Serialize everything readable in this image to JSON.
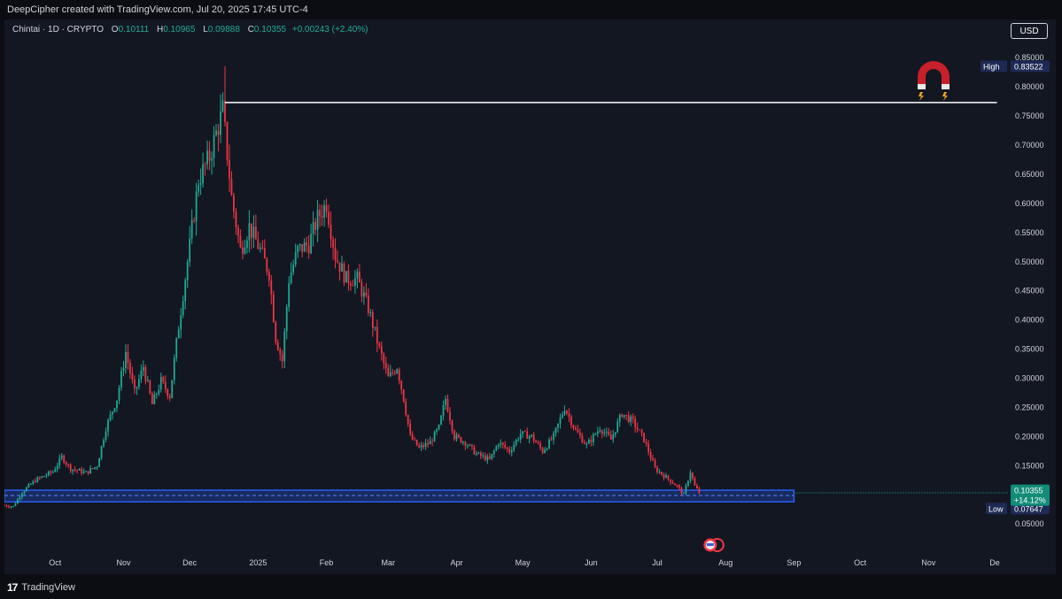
{
  "header": {
    "attribution": "DeepCipher created with TradingView.com, Jul 20, 2025 17:45 UTC-4"
  },
  "legend": {
    "symbol": "Chintai · 1D · CRYPTO",
    "open_label": "O",
    "open": "0.10111",
    "high_label": "H",
    "high": "0.10965",
    "low_label": "L",
    "low": "0.09888",
    "close_label": "C",
    "close": "0.10355",
    "change": "+0.00243 (+2.40%)"
  },
  "currency_button": "USD",
  "footer": {
    "brand_mark": "17",
    "brand": "TradingView"
  },
  "colors": {
    "up": "#22ab94",
    "down": "#f23645",
    "zone": "#2962ff",
    "bg": "#131722",
    "magnet": "#c8202a"
  },
  "icons": [
    "magnet-icon",
    "flag-icon",
    "tradingview-logo-icon"
  ],
  "chart_data": {
    "type": "candlestick",
    "ylim": [
      0.02,
      0.87
    ],
    "y_ticks": [
      "0.85000",
      "0.80000",
      "0.75000",
      "0.70000",
      "0.65000",
      "0.60000",
      "0.55000",
      "0.50000",
      "0.45000",
      "0.40000",
      "0.35000",
      "0.30000",
      "0.25000",
      "0.20000",
      "0.15000",
      "0.10000",
      "0.05000"
    ],
    "y_tick_values": [
      0.85,
      0.8,
      0.75,
      0.7,
      0.65,
      0.6,
      0.55,
      0.5,
      0.45,
      0.4,
      0.35,
      0.3,
      0.25,
      0.2,
      0.15,
      0.1,
      0.05
    ],
    "x_start": "2024-09-08",
    "x_end": "2025-12-05",
    "x_ticks": [
      {
        "label": "Oct",
        "date": "2024-10-01"
      },
      {
        "label": "Nov",
        "date": "2024-11-01"
      },
      {
        "label": "Dec",
        "date": "2024-12-01"
      },
      {
        "label": "2025",
        "date": "2025-01-01"
      },
      {
        "label": "Feb",
        "date": "2025-02-01"
      },
      {
        "label": "Mar",
        "date": "2025-03-01"
      },
      {
        "label": "Apr",
        "date": "2025-04-01"
      },
      {
        "label": "May",
        "date": "2025-05-01"
      },
      {
        "label": "Jun",
        "date": "2025-06-01"
      },
      {
        "label": "Jul",
        "date": "2025-07-01"
      },
      {
        "label": "Aug",
        "date": "2025-08-01"
      },
      {
        "label": "Sep",
        "date": "2025-09-01"
      },
      {
        "label": "Oct",
        "date": "2025-10-01"
      },
      {
        "label": "Nov",
        "date": "2025-11-01"
      },
      {
        "label": "De",
        "date": "2025-12-01"
      }
    ],
    "price_path": [
      {
        "date": "2024-09-08",
        "price": 0.082
      },
      {
        "date": "2024-09-12",
        "price": 0.08
      },
      {
        "date": "2024-09-16",
        "price": 0.105
      },
      {
        "date": "2024-09-22",
        "price": 0.125
      },
      {
        "date": "2024-09-30",
        "price": 0.14
      },
      {
        "date": "2024-10-04",
        "price": 0.165
      },
      {
        "date": "2024-10-08",
        "price": 0.145
      },
      {
        "date": "2024-10-15",
        "price": 0.138
      },
      {
        "date": "2024-10-20",
        "price": 0.15
      },
      {
        "date": "2024-10-24",
        "price": 0.215
      },
      {
        "date": "2024-10-29",
        "price": 0.265
      },
      {
        "date": "2024-11-02",
        "price": 0.345
      },
      {
        "date": "2024-11-06",
        "price": 0.275
      },
      {
        "date": "2024-11-10",
        "price": 0.32
      },
      {
        "date": "2024-11-14",
        "price": 0.255
      },
      {
        "date": "2024-11-18",
        "price": 0.295
      },
      {
        "date": "2024-11-22",
        "price": 0.27
      },
      {
        "date": "2024-11-26",
        "price": 0.39
      },
      {
        "date": "2024-11-30",
        "price": 0.5
      },
      {
        "date": "2024-12-05",
        "price": 0.64
      },
      {
        "date": "2024-12-10",
        "price": 0.68
      },
      {
        "date": "2024-12-16",
        "price": 0.76
      },
      {
        "date": "2024-12-20",
        "price": 0.61
      },
      {
        "date": "2024-12-24",
        "price": 0.52
      },
      {
        "date": "2024-12-28",
        "price": 0.56
      },
      {
        "date": "2025-01-02",
        "price": 0.52
      },
      {
        "date": "2025-01-06",
        "price": 0.48
      },
      {
        "date": "2025-01-09",
        "price": 0.37
      },
      {
        "date": "2025-01-12",
        "price": 0.33
      },
      {
        "date": "2025-01-15",
        "price": 0.47
      },
      {
        "date": "2025-01-19",
        "price": 0.52
      },
      {
        "date": "2025-01-24",
        "price": 0.53
      },
      {
        "date": "2025-01-28",
        "price": 0.575
      },
      {
        "date": "2025-02-01",
        "price": 0.6
      },
      {
        "date": "2025-02-05",
        "price": 0.51
      },
      {
        "date": "2025-02-10",
        "price": 0.47
      },
      {
        "date": "2025-02-15",
        "price": 0.47
      },
      {
        "date": "2025-02-20",
        "price": 0.42
      },
      {
        "date": "2025-02-25",
        "price": 0.35
      },
      {
        "date": "2025-03-01",
        "price": 0.3
      },
      {
        "date": "2025-03-05",
        "price": 0.32
      },
      {
        "date": "2025-03-08",
        "price": 0.265
      },
      {
        "date": "2025-03-11",
        "price": 0.2
      },
      {
        "date": "2025-03-15",
        "price": 0.18
      },
      {
        "date": "2025-03-20",
        "price": 0.19
      },
      {
        "date": "2025-03-24",
        "price": 0.215
      },
      {
        "date": "2025-03-27",
        "price": 0.265
      },
      {
        "date": "2025-03-31",
        "price": 0.2
      },
      {
        "date": "2025-04-05",
        "price": 0.19
      },
      {
        "date": "2025-04-10",
        "price": 0.17
      },
      {
        "date": "2025-04-16",
        "price": 0.16
      },
      {
        "date": "2025-04-20",
        "price": 0.19
      },
      {
        "date": "2025-04-25",
        "price": 0.175
      },
      {
        "date": "2025-04-30",
        "price": 0.205
      },
      {
        "date": "2025-05-05",
        "price": 0.2
      },
      {
        "date": "2025-05-10",
        "price": 0.175
      },
      {
        "date": "2025-05-15",
        "price": 0.2
      },
      {
        "date": "2025-05-20",
        "price": 0.25
      },
      {
        "date": "2025-05-25",
        "price": 0.21
      },
      {
        "date": "2025-05-30",
        "price": 0.185
      },
      {
        "date": "2025-06-05",
        "price": 0.215
      },
      {
        "date": "2025-06-10",
        "price": 0.195
      },
      {
        "date": "2025-06-15",
        "price": 0.24
      },
      {
        "date": "2025-06-20",
        "price": 0.225
      },
      {
        "date": "2025-06-25",
        "price": 0.195
      },
      {
        "date": "2025-06-30",
        "price": 0.145
      },
      {
        "date": "2025-07-05",
        "price": 0.13
      },
      {
        "date": "2025-07-10",
        "price": 0.115
      },
      {
        "date": "2025-07-13",
        "price": 0.1
      },
      {
        "date": "2025-07-16",
        "price": 0.14
      },
      {
        "date": "2025-07-18",
        "price": 0.115
      },
      {
        "date": "2025-07-20",
        "price": 0.1035
      }
    ],
    "horizontal_line": {
      "from": "2024-12-17",
      "to": "2025-12-02",
      "price": 0.773
    },
    "support_zone": {
      "from": "2024-09-08",
      "to": "2025-09-01",
      "top": 0.108,
      "bottom": 0.088,
      "mid": 0.099
    },
    "high_marker": {
      "label": "High",
      "value": "0.83522",
      "price": 0.83522,
      "date": "2024-12-17"
    },
    "low_marker": {
      "label": "Low",
      "value": "0.07647",
      "price": 0.07647
    },
    "last_price": {
      "value": "0.10355",
      "change": "+14.12%",
      "price": 0.10355
    },
    "event_marker_date": "2025-07-25"
  }
}
